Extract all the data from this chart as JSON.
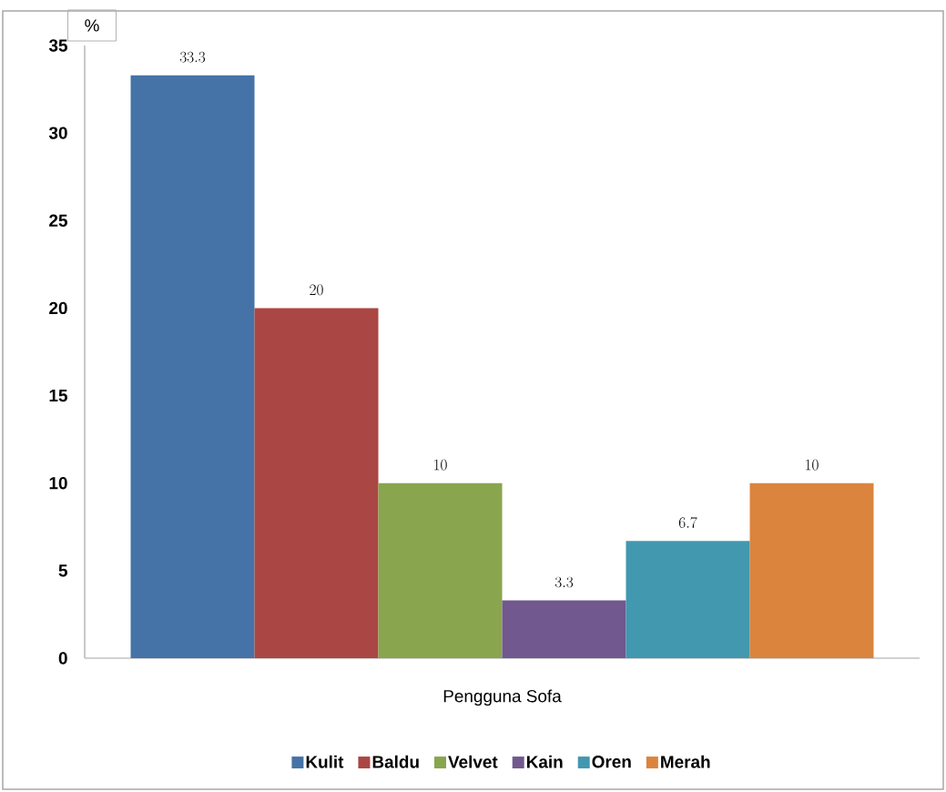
{
  "chart_data": {
    "type": "bar",
    "ylabel": "%",
    "categories": [
      "Pengguna Sofa"
    ],
    "series": [
      {
        "name": "Kulit",
        "color": "#4572a7",
        "values": [
          33.3
        ]
      },
      {
        "name": "Baldu",
        "color": "#aa4643",
        "values": [
          20
        ]
      },
      {
        "name": "Velvet",
        "color": "#89a54e",
        "values": [
          10
        ]
      },
      {
        "name": "Kain",
        "color": "#71588f",
        "values": [
          3.3
        ]
      },
      {
        "name": "Oren",
        "color": "#4198af",
        "values": [
          6.7
        ]
      },
      {
        "name": "Merah",
        "color": "#db843d",
        "values": [
          10
        ]
      }
    ],
    "ylim": [
      0,
      35
    ],
    "yticks": [
      0,
      5,
      10,
      15,
      20,
      25,
      30,
      35
    ],
    "data_labels": true,
    "legend": "bottom",
    "grid": false
  }
}
